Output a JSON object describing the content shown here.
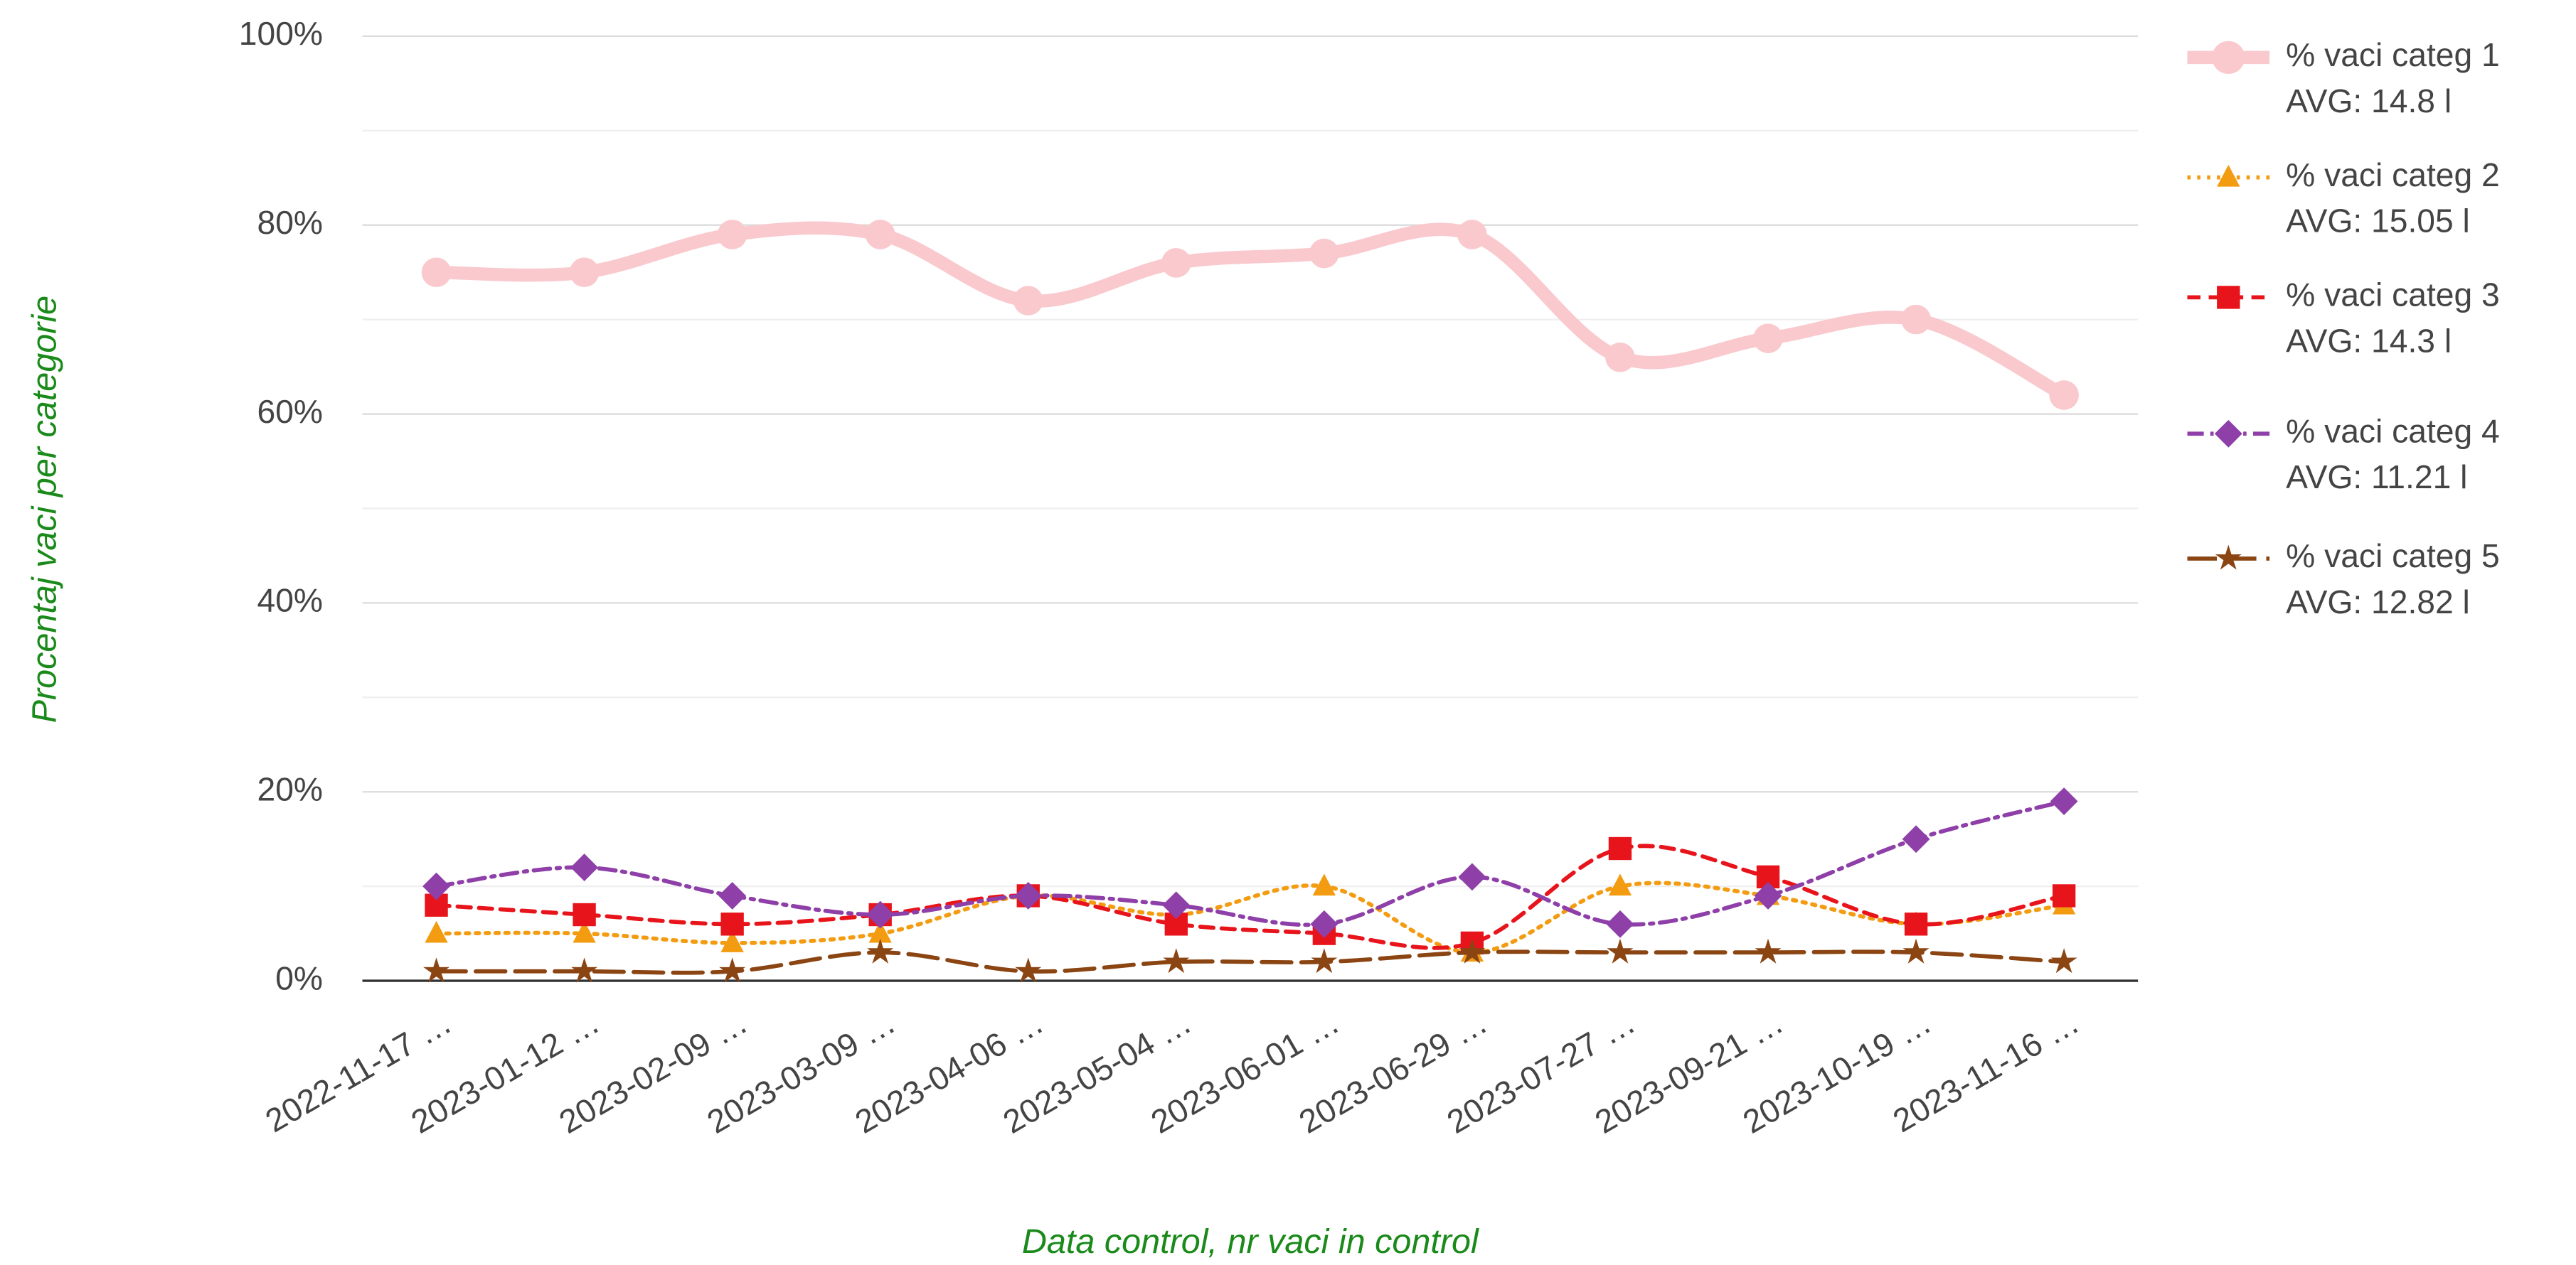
{
  "chart_data": {
    "type": "line",
    "categories": [
      "2022-11-17 …",
      "2023-01-12 …",
      "2023-02-09 …",
      "2023-03-09 …",
      "2023-04-06 …",
      "2023-05-04 …",
      "2023-06-01 …",
      "2023-06-29 …",
      "2023-07-27 …",
      "2023-09-21 …",
      "2023-10-19 …",
      "2023-11-16 …"
    ],
    "series": [
      {
        "name": "% vaci categ 1",
        "avg": "AVG: 14.8 l",
        "color": "#f9c9ce",
        "marker": "circle",
        "dash": "solid",
        "values": [
          75,
          75,
          79,
          79,
          72,
          76,
          77,
          79,
          66,
          68,
          70,
          62
        ]
      },
      {
        "name": "% vaci categ 2",
        "avg": "AVG: 15.05 l",
        "color": "#f39c12",
        "marker": "triangle",
        "dash": "dotted",
        "values": [
          5,
          5,
          4,
          5,
          9,
          7,
          10,
          3,
          10,
          9,
          6,
          8
        ]
      },
      {
        "name": "% vaci categ 3",
        "avg": "AVG: 14.3 l",
        "color": "#e8141b",
        "marker": "square",
        "dash": "dashed",
        "values": [
          8,
          7,
          6,
          7,
          9,
          6,
          5,
          4,
          14,
          11,
          6,
          9
        ]
      },
      {
        "name": "% vaci categ 4",
        "avg": "AVG: 11.21 l",
        "color": "#8e3fa8",
        "marker": "diamond",
        "dash": "dashdot",
        "values": [
          10,
          12,
          9,
          7,
          9,
          8,
          6,
          11,
          6,
          9,
          15,
          19
        ]
      },
      {
        "name": "% vaci categ 5",
        "avg": "AVG: 12.82 l",
        "color": "#8b4513",
        "marker": "star",
        "dash": "longdash",
        "values": [
          1,
          1,
          1,
          3,
          1,
          2,
          2,
          3,
          3,
          3,
          3,
          2
        ]
      }
    ],
    "ylabel": "Procentaj vaci per categorie",
    "xlabel": "Data control, nr vaci in control",
    "ylim": [
      0,
      100
    ],
    "yticks": [
      {
        "value": 0,
        "label": "0%"
      },
      {
        "value": 20,
        "label": "20%"
      },
      {
        "value": 40,
        "label": "40%"
      },
      {
        "value": 60,
        "label": "60%"
      },
      {
        "value": 80,
        "label": "80%"
      },
      {
        "value": 100,
        "label": "100%"
      }
    ],
    "minor_yticks": [
      10,
      30,
      50,
      70,
      90
    ],
    "grid": true,
    "legend": "right"
  }
}
